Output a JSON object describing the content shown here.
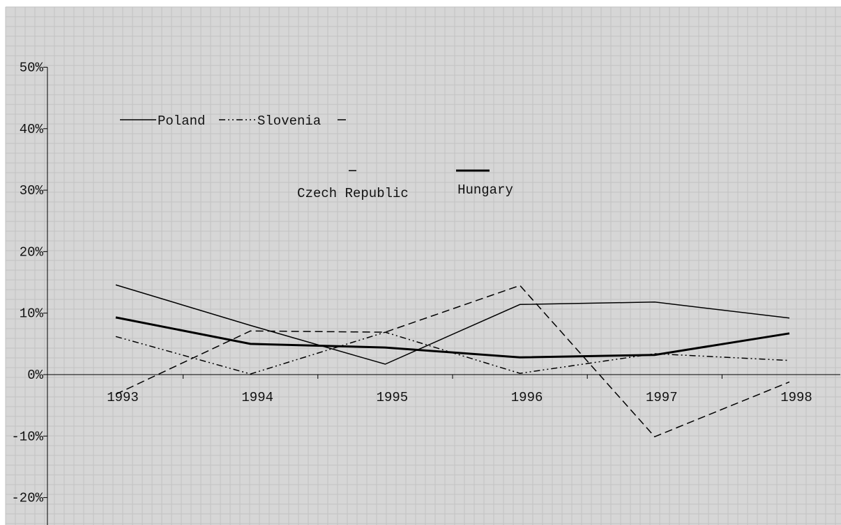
{
  "chart_data": {
    "type": "line",
    "title": "",
    "xlabel": "",
    "ylabel": "",
    "categories": [
      "1993",
      "1994",
      "1995",
      "1996",
      "1997",
      "1998"
    ],
    "ylim": [
      -20,
      50
    ],
    "yticks": [
      -20,
      -10,
      0,
      10,
      20,
      30,
      40,
      50
    ],
    "ytick_labels": [
      "-20%",
      "-10%",
      "0%",
      "10%",
      "20%",
      "30%",
      "40%",
      "50%"
    ],
    "grid": true,
    "legend_position": "top-left",
    "series": [
      {
        "name": "Poland",
        "style": "solid",
        "width": "thin",
        "values": [
          14.6,
          8.0,
          1.7,
          11.4,
          11.8,
          9.2
        ]
      },
      {
        "name": "Slovenia",
        "style": "dash-dot-dot",
        "width": "thin",
        "values": [
          6.2,
          0.1,
          6.9,
          0.2,
          3.4,
          2.3
        ]
      },
      {
        "name": "Czech Republic",
        "style": "dashed",
        "width": "thin",
        "values": [
          -3.2,
          7.1,
          6.9,
          14.5,
          -10.1,
          -1.2
        ]
      },
      {
        "name": "Hungary",
        "style": "solid",
        "width": "thick",
        "values": [
          9.3,
          5.0,
          4.4,
          2.8,
          3.2,
          6.7
        ]
      }
    ],
    "colors": {
      "background": "#d6d6d6",
      "grid": "#c2c2c2",
      "line": "#000000"
    }
  }
}
